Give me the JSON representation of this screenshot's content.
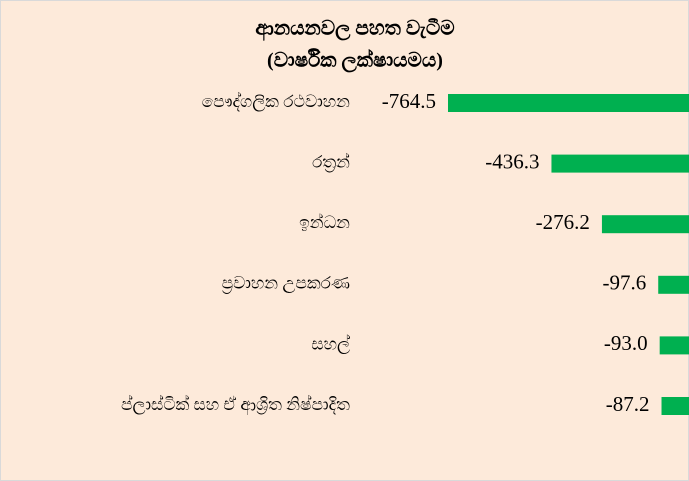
{
  "chart_data": {
    "type": "barh",
    "title": [
      "ආනයනවල පහත වැටීම",
      "(වාර්ෂික ලක්ෂායමය)"
    ],
    "categories": [
      "පෞද්ගලික රථවාහන",
      "රත්‍රන්",
      "ඉන්ධන",
      "ප්‍රවාහන උපකරණ",
      "සහල්",
      "ප්ලාස්ටික් සහ ඒ ආශ්‍රිත නිෂ්පාදිත"
    ],
    "values": [
      -764.5,
      -436.3,
      -276.2,
      -97.6,
      -93.0,
      -87.2
    ],
    "value_labels": [
      "-764.5",
      "-436.3",
      "-276.2",
      "-97.6",
      "-93.0",
      "-87.2"
    ],
    "color": "#00b050",
    "xlim": [
      -764.5,
      0
    ]
  }
}
